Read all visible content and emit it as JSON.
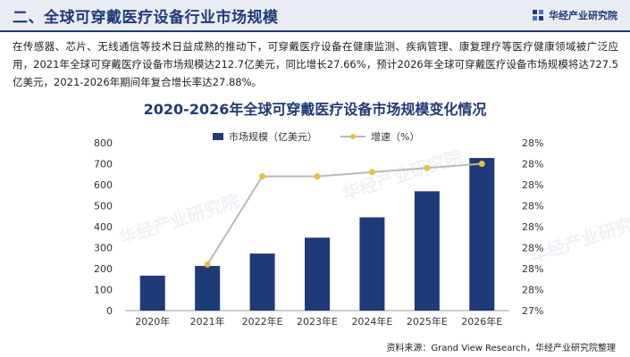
{
  "header": {
    "title": "二、全球可穿戴医疗设备行业市场规模",
    "brand": "华经产业研究院"
  },
  "intro_text": "在传感器、芯片、无线通信等技术日益成熟的推动下，可穿戴医疗设备在健康监测、疾病管理、康复理疗等医疗健康领域被广泛应用，2021年全球可穿戴医疗设备市场规模达212.7亿美元，同比增长27.66%，预计2026年全球可穿戴医疗设备市场规模将达727.5亿美元，2021-2026年期间年复合增长率达27.88%。",
  "source": "资料来源：Grand View Research，华经产业研究院整理",
  "watermark": "华经产业研究院",
  "colors": {
    "bar": "#1f3a78",
    "line": "#b9b9b9",
    "marker": "#e6c23a",
    "title": "#1f3a78"
  },
  "chart_data": {
    "type": "bar+line",
    "title": "2020-2026年全球可穿戴医疗设备市场规模变化情况",
    "categories": [
      "2020年",
      "2021年",
      "2022年E",
      "2023年E",
      "2024年E",
      "2025年E",
      "2026年E"
    ],
    "series": [
      {
        "name": "市场规模（亿美元）",
        "type": "bar",
        "axis": "left",
        "values": [
          166.6,
          212.7,
          272.0,
          347.8,
          444.8,
          568.9,
          727.5
        ]
      },
      {
        "name": "增速（%）",
        "type": "line",
        "axis": "right",
        "values": [
          null,
          27.66,
          27.87,
          27.87,
          27.88,
          27.89,
          27.9
        ]
      }
    ],
    "y_left": {
      "min": 0,
      "max": 800,
      "step": 100,
      "ticks": [
        "0",
        "100",
        "200",
        "300",
        "400",
        "500",
        "600",
        "700",
        "800"
      ]
    },
    "y_right": {
      "min": 27.55,
      "max": 27.95,
      "ticks": [
        "27%",
        "28%",
        "28%",
        "28%",
        "28%",
        "28%",
        "28%",
        "28%",
        "28%"
      ]
    },
    "legend_position": "top-center",
    "grid": false
  }
}
